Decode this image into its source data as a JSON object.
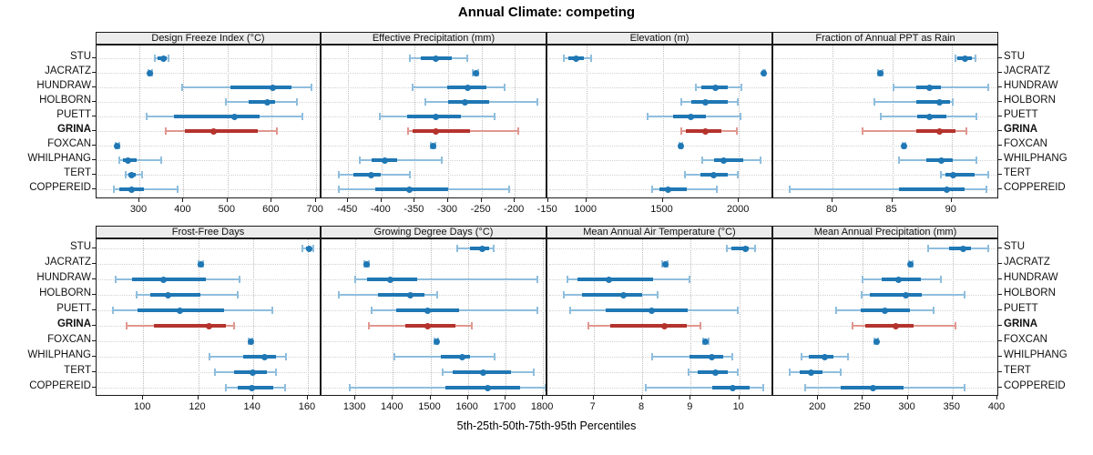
{
  "title": "Annual Climate: competing",
  "caption": "5th-25th-50th-75th-95th Percentiles",
  "sites": [
    "STU",
    "JACRATZ",
    "HUNDRAW",
    "HOLBORN",
    "PUETT",
    "GRINA",
    "FOXCAN",
    "WHILPHANG",
    "TERT",
    "COPPEREID"
  ],
  "highlight_site": "GRINA",
  "colors": {
    "normal": "#1f77b4",
    "normal_light": "#8fbedd",
    "highlight": "#b5332d",
    "highlight_light": "#e09790",
    "strip_bg": "#ececec",
    "grid_v": "#bdbdbd",
    "grid_h": "#d2d2d2",
    "border": "#1a1a1a"
  },
  "chart_data": {
    "type": "dotplot-percentiles",
    "note": "5th-25th-50th-75th-95th percentile summaries per site, 8 panels, 2x4 trellis",
    "percentile_labels": [
      "5th",
      "25th",
      "50th",
      "75th",
      "95th"
    ],
    "panels": [
      {
        "title": "Design Freeze Index (°C)",
        "ticks": [
          300,
          400,
          500,
          600,
          700
        ],
        "domain": [
          203,
          713
        ],
        "values": {
          "STU": [
            335,
            342,
            354,
            362,
            366
          ],
          "JACRATZ": [
            320,
            322,
            324,
            326,
            328
          ],
          "HUNDRAW": [
            398,
            507,
            602,
            646,
            691
          ],
          "HOLBORN": [
            497,
            548,
            590,
            608,
            657
          ],
          "PUETT": [
            316,
            379,
            516,
            572,
            669
          ],
          "GRINA": [
            359,
            404,
            469,
            569,
            612
          ],
          "FOXCAN": [
            246,
            248,
            250,
            252,
            254
          ],
          "WHILPHANG": [
            255,
            262,
            275,
            293,
            349
          ],
          "TERT": [
            269,
            275,
            283,
            292,
            306
          ],
          "COPPEREID": [
            242,
            255,
            283,
            311,
            386
          ]
        }
      },
      {
        "title": "Effective Precipitation (mm)",
        "ticks": [
          -450,
          -400,
          -350,
          -300,
          -250,
          -200,
          -150
        ],
        "domain": [
          -490,
          -151
        ],
        "values": {
          "STU": [
            -358,
            -341,
            -319,
            -295,
            -272
          ],
          "JACRATZ": [
            -263,
            -261,
            -259,
            -257,
            -255
          ],
          "HUNDRAW": [
            -354,
            -302,
            -271,
            -242,
            -215
          ],
          "HOLBORN": [
            -334,
            -300,
            -275,
            -238,
            -166
          ],
          "PUETT": [
            -403,
            -361,
            -319,
            -281,
            -231
          ],
          "GRINA": [
            -360,
            -354,
            -318,
            -267,
            -195
          ],
          "FOXCAN": [
            -326,
            -324,
            -323,
            -321,
            -319
          ],
          "WHILPHANG": [
            -432,
            -415,
            -395,
            -376,
            -309
          ],
          "TERT": [
            -464,
            -442,
            -416,
            -401,
            -357
          ],
          "COPPEREID": [
            -464,
            -410,
            -358,
            -300,
            -209
          ]
        }
      },
      {
        "title": "Elevation (m)",
        "ticks": [
          1000,
          1500,
          2000
        ],
        "domain": [
          744,
          2226
        ],
        "values": {
          "STU": [
            854,
            884,
            934,
            984,
            1030
          ],
          "JACRATZ": [
            2158,
            2161,
            2164,
            2167,
            2170
          ],
          "HUNDRAW": [
            1719,
            1755,
            1846,
            1930,
            2014
          ],
          "HOLBORN": [
            1625,
            1685,
            1780,
            1926,
            1994
          ],
          "PUETT": [
            1403,
            1570,
            1685,
            1786,
            2010
          ],
          "GRINA": [
            1625,
            1654,
            1780,
            1886,
            1988
          ],
          "FOXCAN": [
            1612,
            1616,
            1619,
            1622,
            1626
          ],
          "WHILPHANG": [
            1761,
            1836,
            1902,
            2030,
            2145
          ],
          "TERT": [
            1649,
            1748,
            1836,
            1926,
            1991
          ],
          "COPPEREID": [
            1431,
            1480,
            1534,
            1658,
            1856
          ]
        }
      },
      {
        "title": "Fraction of Annual PPT as Rain",
        "ticks": [
          80,
          85,
          90
        ],
        "domain": [
          75,
          94
        ],
        "values": {
          "STU": [
            90.3,
            90.5,
            91.1,
            91.7,
            92.0
          ],
          "JACRATZ": [
            83.8,
            83.9,
            84.0,
            84.1,
            84.2
          ],
          "HUNDRAW": [
            85.1,
            87.0,
            88.1,
            89.1,
            93.1
          ],
          "HOLBORN": [
            83.5,
            87.0,
            89.0,
            89.9,
            90.1
          ],
          "PUETT": [
            84.0,
            87.1,
            88.1,
            89.6,
            92.1
          ],
          "GRINA": [
            82.5,
            87.0,
            89.0,
            90.3,
            91.2
          ],
          "FOXCAN": [
            85.9,
            86.0,
            86.0,
            86.1,
            86.1
          ],
          "WHILPHANG": [
            85.6,
            87.9,
            89.1,
            90.1,
            92.1
          ],
          "TERT": [
            89.1,
            89.5,
            90.1,
            91.9,
            93.1
          ],
          "COPPEREID": [
            76.4,
            85.6,
            89.6,
            91.1,
            92.9
          ]
        }
      },
      {
        "title": "Frost-Free Days",
        "ticks": [
          100,
          120,
          140,
          160
        ],
        "domain": [
          83,
          165
        ],
        "values": {
          "STU": [
            158,
            159.5,
            160.5,
            161.3,
            162
          ],
          "JACRATZ": [
            120.3,
            120.7,
            121,
            121.3,
            121.7
          ],
          "HUNDRAW": [
            90,
            96,
            107.5,
            123,
            135
          ],
          "HOLBORN": [
            97.5,
            102.5,
            109,
            121,
            134.5
          ],
          "PUETT": [
            89,
            98,
            113.5,
            129.5,
            147
          ],
          "GRINA": [
            94,
            104,
            124,
            130,
            133
          ],
          "FOXCAN": [
            138.5,
            138.9,
            139.2,
            139.5,
            139.9
          ],
          "WHILPHANG": [
            124,
            136.3,
            144.3,
            148.4,
            152
          ],
          "TERT": [
            126,
            133,
            140,
            145,
            148.5
          ],
          "COPPEREID": [
            130,
            134.6,
            139.5,
            147.5,
            151.7
          ]
        }
      },
      {
        "title": "Growing Degree Days (°C)",
        "ticks": [
          1300,
          1400,
          1500,
          1600,
          1700,
          1800
        ],
        "domain": [
          1210,
          1812
        ],
        "values": {
          "STU": [
            1571,
            1606,
            1638,
            1656,
            1669
          ],
          "JACRATZ": [
            1325,
            1328,
            1330,
            1332,
            1335
          ],
          "HUNDRAW": [
            1300,
            1331,
            1392,
            1464,
            1786
          ],
          "HOLBORN": [
            1255,
            1360,
            1447,
            1485,
            1518
          ],
          "PUETT": [
            1343,
            1408,
            1493,
            1577,
            1784
          ],
          "GRINA": [
            1337,
            1433,
            1493,
            1567,
            1611
          ],
          "FOXCAN": [
            1512,
            1514,
            1516,
            1518,
            1520
          ],
          "WHILPHANG": [
            1404,
            1528,
            1585,
            1606,
            1671
          ],
          "TERT": [
            1533,
            1560,
            1640,
            1715,
            1775
          ],
          "COPPEREID": [
            1286,
            1539,
            1653,
            1740,
            1808
          ]
        }
      },
      {
        "title": "Mean Annual Air Temperature (°C)",
        "ticks": [
          7,
          8,
          9,
          10
        ],
        "domain": [
          6.05,
          10.7
        ],
        "values": {
          "STU": [
            9.74,
            9.83,
            10.13,
            10.2,
            10.33
          ],
          "JACRATZ": [
            8.42,
            8.45,
            8.47,
            8.49,
            8.52
          ],
          "HUNDRAW": [
            6.47,
            6.67,
            7.31,
            8.23,
            8.98
          ],
          "HOLBORN": [
            6.39,
            6.77,
            7.62,
            8.01,
            8.31
          ],
          "PUETT": [
            6.51,
            7.24,
            8.2,
            8.94,
            9.96
          ],
          "GRINA": [
            6.89,
            7.35,
            8.46,
            8.92,
            9.19
          ],
          "FOXCAN": [
            9.26,
            9.29,
            9.31,
            9.33,
            9.36
          ],
          "WHILPHANG": [
            8.2,
            8.98,
            9.44,
            9.67,
            9.86
          ],
          "TERT": [
            8.96,
            9.14,
            9.5,
            9.77,
            9.96
          ],
          "COPPEREID": [
            8.08,
            9.45,
            9.86,
            10.21,
            10.49
          ]
        }
      },
      {
        "title": "Mean Annual Precipitation (mm)",
        "ticks": [
          200,
          250,
          300,
          350,
          400
        ],
        "domain": [
          150,
          402
        ],
        "values": {
          "STU": [
            323,
            346,
            362,
            371,
            390
          ],
          "JACRATZ": [
            301,
            302,
            303,
            304,
            305
          ],
          "HUNDRAW": [
            250,
            271,
            290,
            315,
            337
          ],
          "HOLBORN": [
            249,
            258,
            298,
            316,
            363
          ],
          "PUETT": [
            220,
            248,
            274,
            303,
            329
          ],
          "GRINA": [
            238,
            253,
            287,
            306,
            353
          ],
          "FOXCAN": [
            263,
            264,
            265,
            266,
            267
          ],
          "WHILPHANG": [
            181,
            190,
            207,
            217,
            233
          ],
          "TERT": [
            168,
            179,
            192,
            205,
            225
          ],
          "COPPEREID": [
            186,
            225,
            261,
            295,
            363
          ]
        }
      }
    ]
  }
}
